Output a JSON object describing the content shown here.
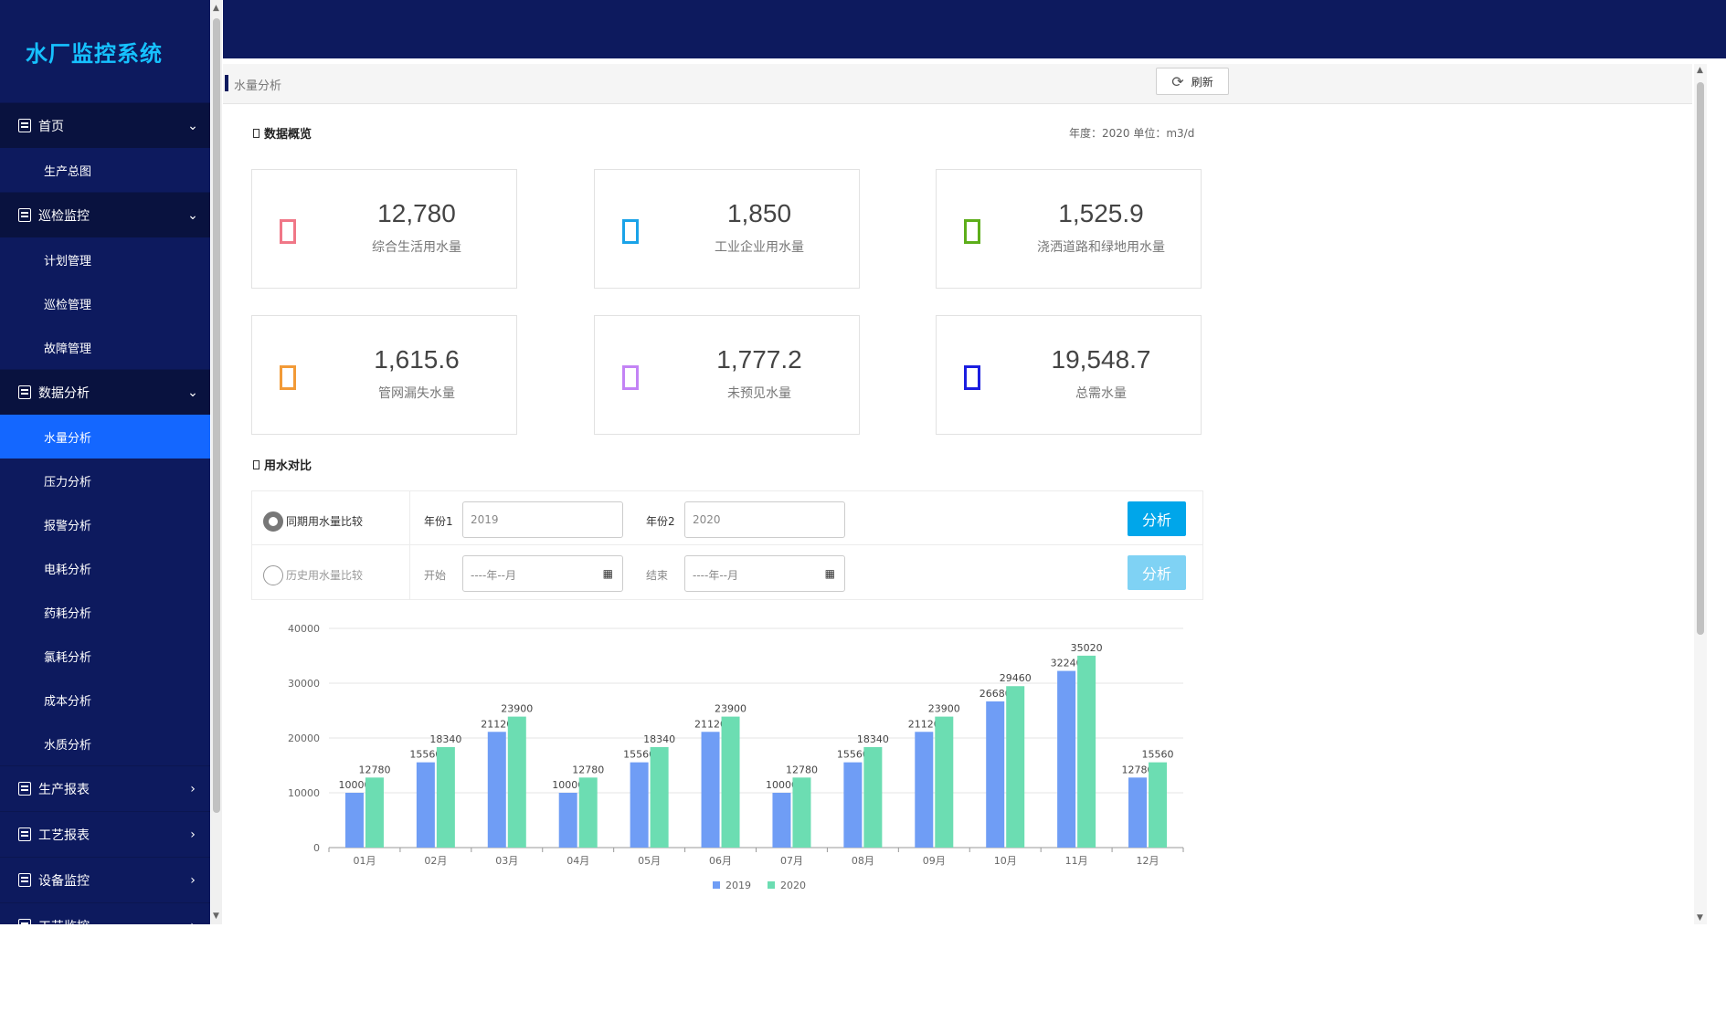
{
  "sidebar": {
    "brand": "水厂监控系统",
    "groups": [
      {
        "label": "首页",
        "items": [
          "生产总图"
        ]
      },
      {
        "label": "巡检监控",
        "items": [
          "计划管理",
          "巡检管理",
          "故障管理"
        ]
      },
      {
        "label": "数据分析",
        "items": [
          "水量分析",
          "压力分析",
          "报警分析",
          "电耗分析",
          "药耗分析",
          "氯耗分析",
          "成本分析",
          "水质分析"
        ]
      },
      {
        "label": "生产报表",
        "items": []
      },
      {
        "label": "工艺报表",
        "items": []
      },
      {
        "label": "设备监控",
        "items": []
      },
      {
        "label": "工艺监控",
        "items": []
      }
    ],
    "active_item": "水量分析"
  },
  "breadcrumb": "水量分析",
  "refresh_label": "刷新",
  "overview": {
    "title": "数据概览",
    "unit_text": "年度：2020  单位：m3/d",
    "cards": [
      {
        "value": "12,780",
        "label": "综合生活用水量",
        "color": "#f07787"
      },
      {
        "value": "1,850",
        "label": "工业企业用水量",
        "color": "#1aa3e8"
      },
      {
        "value": "1,525.9",
        "label": "浇洒道路和绿地用水量",
        "color": "#5dae1a"
      },
      {
        "value": "1,615.6",
        "label": "管网漏失水量",
        "color": "#f29a37"
      },
      {
        "value": "1,777.2",
        "label": "未预见水量",
        "color": "#c383f5"
      },
      {
        "value": "19,548.7",
        "label": "总需水量",
        "color": "#1b1ee0"
      }
    ]
  },
  "compare": {
    "title": "用水对比",
    "row1": {
      "radio_label": "同期用水量比较",
      "label1": "年份1",
      "value1": "2019",
      "label2": "年份2",
      "value2": "2020",
      "button": "分析"
    },
    "row2": {
      "radio_label": "历史用水量比较",
      "label1": "开始",
      "value1": "----年--月",
      "label2": "结束",
      "value2": "----年--月",
      "button": "分析"
    }
  },
  "chart_data": {
    "type": "bar",
    "categories": [
      "01月",
      "02月",
      "03月",
      "04月",
      "05月",
      "06月",
      "07月",
      "08月",
      "09月",
      "10月",
      "11月",
      "12月"
    ],
    "series": [
      {
        "name": "2019",
        "color": "#6f9df5",
        "values": [
          10000,
          15560,
          21120,
          10000,
          15560,
          21120,
          10000,
          15560,
          21120,
          26680,
          32240,
          12780
        ]
      },
      {
        "name": "2020",
        "color": "#6cddb2",
        "values": [
          12780,
          18340,
          23900,
          12780,
          18340,
          23900,
          12780,
          18340,
          23900,
          29460,
          35020,
          15560
        ]
      }
    ],
    "yticks": [
      0,
      10000,
      20000,
      30000,
      40000
    ],
    "ylim": [
      0,
      40000
    ],
    "legend_position": "bottom"
  }
}
